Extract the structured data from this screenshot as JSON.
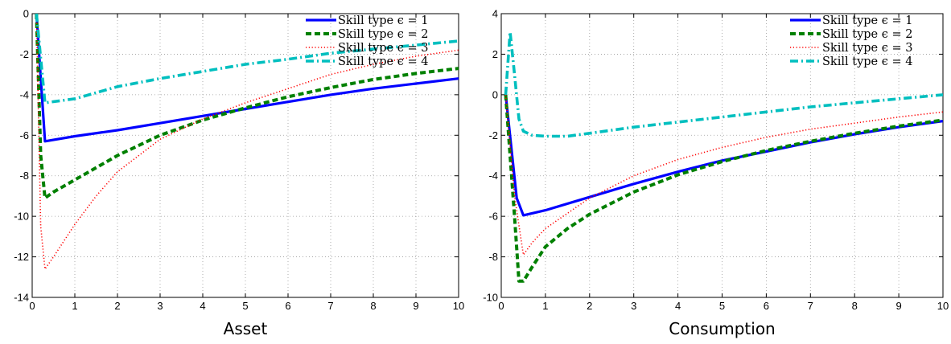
{
  "chart_data": [
    {
      "type": "line",
      "title": "",
      "xlabel": "Asset",
      "ylabel": "",
      "xlim": [
        0,
        10
      ],
      "ylim": [
        -14,
        0
      ],
      "xticks": [
        "0",
        "1",
        "2",
        "3",
        "4",
        "5",
        "6",
        "7",
        "8",
        "9",
        "10"
      ],
      "yticks": [
        "0",
        "-2",
        "-4",
        "-6",
        "-8",
        "-10",
        "-12",
        "-14"
      ],
      "grid": true,
      "legend_position": "top-right",
      "series": [
        {
          "name": "Skill type ϵ = 1",
          "color": "#0000ff",
          "style": "solid",
          "x": [
            0.1,
            0.3,
            1,
            2,
            3,
            4,
            5,
            6,
            7,
            8,
            9,
            10
          ],
          "y": [
            0,
            -6.3,
            -6.05,
            -5.75,
            -5.4,
            -5.05,
            -4.7,
            -4.35,
            -4.0,
            -3.7,
            -3.45,
            -3.2
          ]
        },
        {
          "name": "Skill type ϵ = 2",
          "color": "#008000",
          "style": "dashed",
          "x": [
            0.1,
            0.2,
            0.3,
            0.5,
            1,
            2,
            3,
            4,
            5,
            6,
            7,
            8,
            9,
            10
          ],
          "y": [
            0,
            -7.0,
            -9.1,
            -8.8,
            -8.2,
            -7.0,
            -6.0,
            -5.25,
            -4.65,
            -4.1,
            -3.65,
            -3.25,
            -2.95,
            -2.7
          ]
        },
        {
          "name": "Skill type ϵ = 3",
          "color": "#ff0000",
          "style": "dotted",
          "x": [
            0.1,
            0.2,
            0.3,
            0.5,
            1,
            1.5,
            2,
            3,
            4,
            5,
            6,
            7,
            8,
            9,
            10
          ],
          "y": [
            0,
            -10.5,
            -12.6,
            -12.0,
            -10.4,
            -9.0,
            -7.8,
            -6.2,
            -5.2,
            -4.4,
            -3.7,
            -3.0,
            -2.5,
            -2.1,
            -1.8
          ]
        },
        {
          "name": "Skill type ϵ = 4",
          "color": "#00bfbf",
          "style": "dashdot",
          "x": [
            0.1,
            0.3,
            1,
            2,
            3,
            4,
            5,
            6,
            7,
            8,
            9,
            10
          ],
          "y": [
            0,
            -4.4,
            -4.2,
            -3.6,
            -3.2,
            -2.85,
            -2.5,
            -2.25,
            -1.95,
            -1.75,
            -1.55,
            -1.35
          ]
        }
      ]
    },
    {
      "type": "line",
      "title": "",
      "xlabel": "Consumption",
      "ylabel": "",
      "xlim": [
        0,
        10
      ],
      "ylim": [
        -10,
        4
      ],
      "xticks": [
        "0",
        "1",
        "2",
        "3",
        "4",
        "5",
        "6",
        "7",
        "8",
        "9",
        "10"
      ],
      "yticks": [
        "4",
        "2",
        "0",
        "-2",
        "-4",
        "-6",
        "-8",
        "-10"
      ],
      "grid": true,
      "legend_position": "top-right",
      "series": [
        {
          "name": "Skill type ϵ = 1",
          "color": "#0000ff",
          "style": "solid",
          "x": [
            0.1,
            0.35,
            0.5,
            1,
            2,
            3,
            4,
            5,
            6,
            7,
            8,
            9,
            10
          ],
          "y": [
            0,
            -5.1,
            -5.95,
            -5.7,
            -5.05,
            -4.4,
            -3.8,
            -3.25,
            -2.8,
            -2.35,
            -1.95,
            -1.6,
            -1.3
          ]
        },
        {
          "name": "Skill type ϵ = 2",
          "color": "#008000",
          "style": "dashed",
          "x": [
            0.1,
            0.3,
            0.4,
            0.5,
            0.7,
            1,
            1.5,
            2,
            3,
            4,
            5,
            6,
            7,
            8,
            9,
            10
          ],
          "y": [
            0,
            -6.0,
            -9.2,
            -9.2,
            -8.5,
            -7.5,
            -6.6,
            -5.9,
            -4.8,
            -3.95,
            -3.3,
            -2.75,
            -2.3,
            -1.9,
            -1.55,
            -1.25
          ]
        },
        {
          "name": "Skill type ϵ = 3",
          "color": "#ff0000",
          "style": "dotted",
          "x": [
            0.1,
            0.3,
            0.5,
            0.7,
            1,
            2,
            3,
            4,
            5,
            6,
            7,
            8,
            9,
            10
          ],
          "y": [
            0,
            -5.0,
            -7.9,
            -7.3,
            -6.6,
            -5.1,
            -4.0,
            -3.2,
            -2.6,
            -2.1,
            -1.7,
            -1.4,
            -1.1,
            -0.85
          ]
        },
        {
          "name": "Skill type ϵ = 4",
          "color": "#00bfbf",
          "style": "dashdot",
          "x": [
            0.1,
            0.2,
            0.3,
            0.4,
            0.5,
            0.7,
            1,
            1.5,
            2,
            3,
            4,
            5,
            6,
            7,
            8,
            9,
            10
          ],
          "y": [
            0,
            3.1,
            1.0,
            -1.2,
            -1.8,
            -2.0,
            -2.05,
            -2.05,
            -1.9,
            -1.6,
            -1.35,
            -1.1,
            -0.85,
            -0.6,
            -0.4,
            -0.2,
            0
          ]
        }
      ]
    }
  ]
}
